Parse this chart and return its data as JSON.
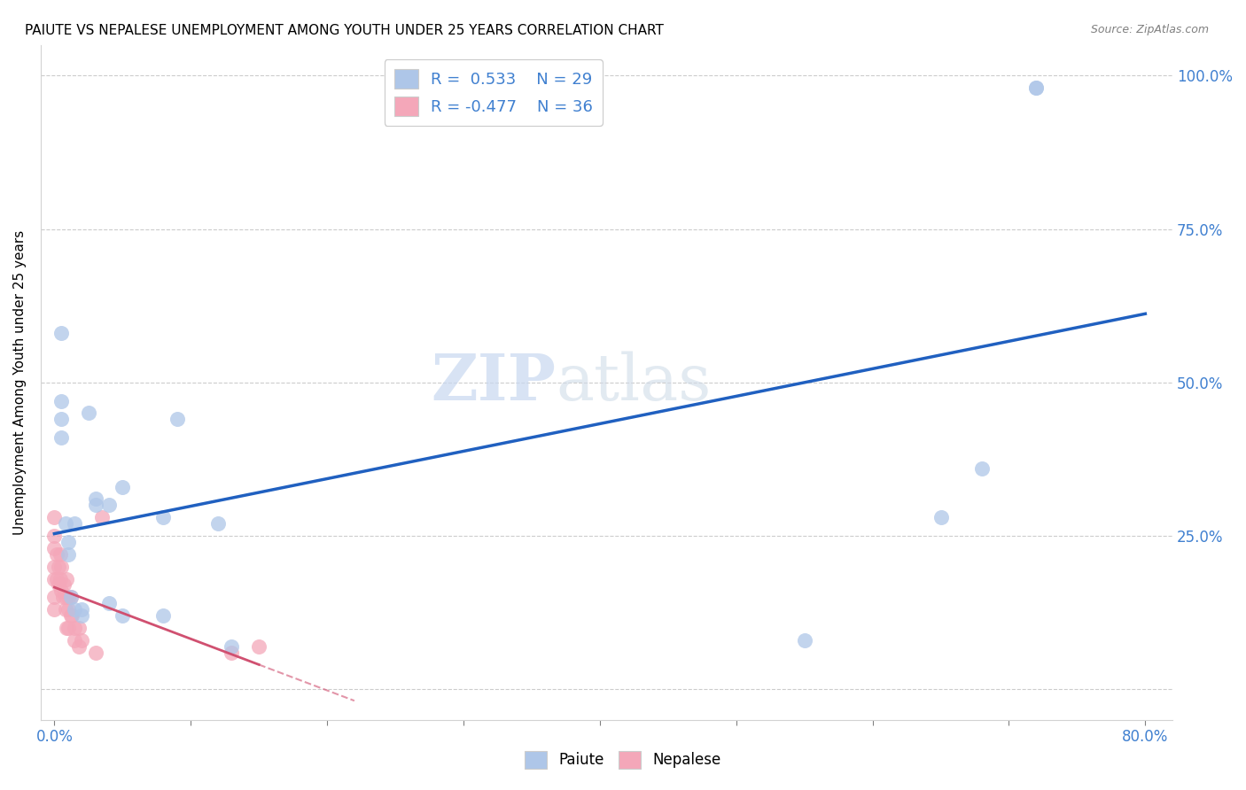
{
  "title": "PAIUTE VS NEPALESE UNEMPLOYMENT AMONG YOUTH UNDER 25 YEARS CORRELATION CHART",
  "source": "Source: ZipAtlas.com",
  "ylabel": "Unemployment Among Youth under 25 years",
  "xlim": [
    -0.01,
    0.82
  ],
  "ylim": [
    -0.05,
    1.05
  ],
  "xtick_positions": [
    0.0,
    0.1,
    0.2,
    0.3,
    0.4,
    0.5,
    0.6,
    0.7,
    0.8
  ],
  "xtick_labels": [
    "0.0%",
    "",
    "",
    "",
    "",
    "",
    "",
    "",
    "80.0%"
  ],
  "ytick_positions": [
    0.0,
    0.25,
    0.5,
    0.75,
    1.0
  ],
  "ytick_labels_right": [
    "",
    "25.0%",
    "50.0%",
    "75.0%",
    "100.0%"
  ],
  "paiute_R": 0.533,
  "paiute_N": 29,
  "nepalese_R": -0.477,
  "nepalese_N": 36,
  "paiute_color": "#aec6e8",
  "nepalese_color": "#f4a7b9",
  "trend_paiute_color": "#2060c0",
  "trend_nepalese_color": "#d05070",
  "tick_color": "#4080d0",
  "grid_color": "#cccccc",
  "paiute_x": [
    0.005,
    0.005,
    0.005,
    0.005,
    0.008,
    0.01,
    0.01,
    0.012,
    0.015,
    0.015,
    0.02,
    0.02,
    0.025,
    0.03,
    0.03,
    0.04,
    0.04,
    0.05,
    0.05,
    0.08,
    0.08,
    0.09,
    0.12,
    0.13,
    0.55,
    0.65,
    0.68,
    0.72,
    0.72
  ],
  "paiute_y": [
    0.58,
    0.47,
    0.44,
    0.41,
    0.27,
    0.24,
    0.22,
    0.15,
    0.27,
    0.13,
    0.13,
    0.12,
    0.45,
    0.31,
    0.3,
    0.3,
    0.14,
    0.33,
    0.12,
    0.28,
    0.12,
    0.44,
    0.27,
    0.07,
    0.08,
    0.28,
    0.36,
    0.98,
    0.98
  ],
  "nepalese_x": [
    0.0,
    0.0,
    0.0,
    0.0,
    0.0,
    0.0,
    0.0,
    0.002,
    0.002,
    0.003,
    0.003,
    0.004,
    0.004,
    0.005,
    0.005,
    0.006,
    0.007,
    0.008,
    0.008,
    0.009,
    0.009,
    0.01,
    0.01,
    0.01,
    0.012,
    0.012,
    0.013,
    0.015,
    0.015,
    0.018,
    0.018,
    0.02,
    0.03,
    0.035,
    0.13,
    0.15
  ],
  "nepalese_y": [
    0.28,
    0.25,
    0.23,
    0.2,
    0.18,
    0.15,
    0.13,
    0.22,
    0.18,
    0.2,
    0.17,
    0.22,
    0.18,
    0.2,
    0.16,
    0.15,
    0.17,
    0.15,
    0.13,
    0.18,
    0.1,
    0.15,
    0.13,
    0.1,
    0.15,
    0.12,
    0.12,
    0.1,
    0.08,
    0.1,
    0.07,
    0.08,
    0.06,
    0.28,
    0.06,
    0.07
  ]
}
